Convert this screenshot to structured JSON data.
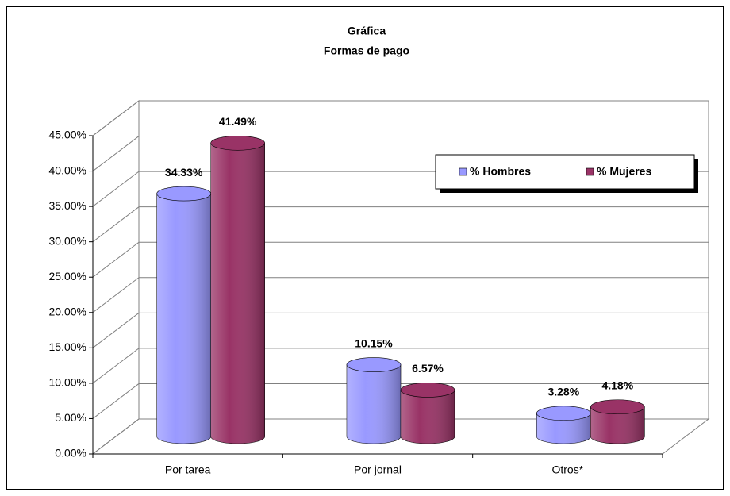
{
  "chart_data": {
    "type": "bar3d",
    "title": "Gráfica",
    "subtitle": "Formas de pago",
    "categories": [
      "Por tarea",
      "Por jornal",
      "Otros*"
    ],
    "series": [
      {
        "name": "% Hombres",
        "color": "#9999ff",
        "values": [
          34.33,
          10.15,
          3.28
        ],
        "value_labels": [
          "34.33%",
          "10.15%",
          "3.28%"
        ]
      },
      {
        "name": "% Mujeres",
        "color": "#993366",
        "values": [
          41.49,
          6.57,
          4.18
        ],
        "value_labels": [
          "41.49%",
          "6.57%",
          "4.18%"
        ]
      }
    ],
    "ylim": [
      0,
      45
    ],
    "yticks": [
      {
        "value": 0,
        "label": "0.00%"
      },
      {
        "value": 5,
        "label": "5.00%"
      },
      {
        "value": 10,
        "label": "10.00%"
      },
      {
        "value": 15,
        "label": "15.00%"
      },
      {
        "value": 20,
        "label": "20.00%"
      },
      {
        "value": 25,
        "label": "25.00%"
      },
      {
        "value": 30,
        "label": "30.00%"
      },
      {
        "value": 35,
        "label": "35.00%"
      },
      {
        "value": 40,
        "label": "40.00%"
      },
      {
        "value": 45,
        "label": "45.00%"
      }
    ],
    "grid": true,
    "legend": "upper right"
  }
}
